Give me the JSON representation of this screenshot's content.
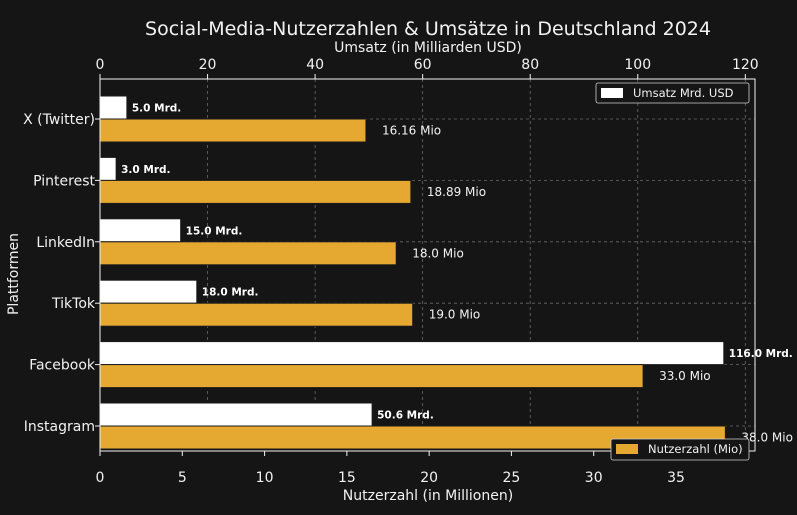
{
  "chart_data": {
    "type": "bar",
    "orientation": "horizontal",
    "title": "Social-Media-Nutzerzahlen & Umsätze in Deutschland 2024",
    "ylabel": "Plattformen",
    "categories": [
      "X (Twitter)",
      "Pinterest",
      "LinkedIn",
      "TikTok",
      "Facebook",
      "Instagram"
    ],
    "bottom_axis": {
      "label": "Nutzerzahl (in Millionen)",
      "ticks": [
        0,
        5,
        10,
        15,
        20,
        25,
        30,
        35
      ],
      "range": [
        0,
        39.8
      ]
    },
    "top_axis": {
      "label": "Umsatz (in Milliarden USD)",
      "ticks": [
        0,
        20,
        40,
        60,
        80,
        100,
        120
      ],
      "range": [
        0,
        121.8
      ]
    },
    "series": [
      {
        "name": "Umsatz Mrd. USD",
        "axis": "top",
        "color": "#ffffff",
        "values": [
          5.0,
          3.0,
          15.0,
          18.0,
          116.0,
          50.6
        ],
        "labels": [
          "5.0 Mrd.",
          "3.0 Mrd.",
          "15.0 Mrd.",
          "18.0 Mrd.",
          "116.0 Mrd.",
          "50.6 Mrd."
        ]
      },
      {
        "name": "Nutzerzahl (Mio)",
        "axis": "bottom",
        "color": "#e5a830",
        "values": [
          16.16,
          18.89,
          18.0,
          19.0,
          33.0,
          38.0
        ],
        "labels": [
          "16.16 Mio",
          "18.89 Mio",
          "18.0 Mio",
          "19.0 Mio",
          "33.0 Mio",
          "38.0 Mio"
        ]
      }
    ],
    "legend": [
      {
        "label": "Umsatz Mrd. USD",
        "placement": "top-right"
      },
      {
        "label": "Nutzerzahl (Mio)",
        "placement": "bottom-right"
      }
    ],
    "grid": true
  }
}
